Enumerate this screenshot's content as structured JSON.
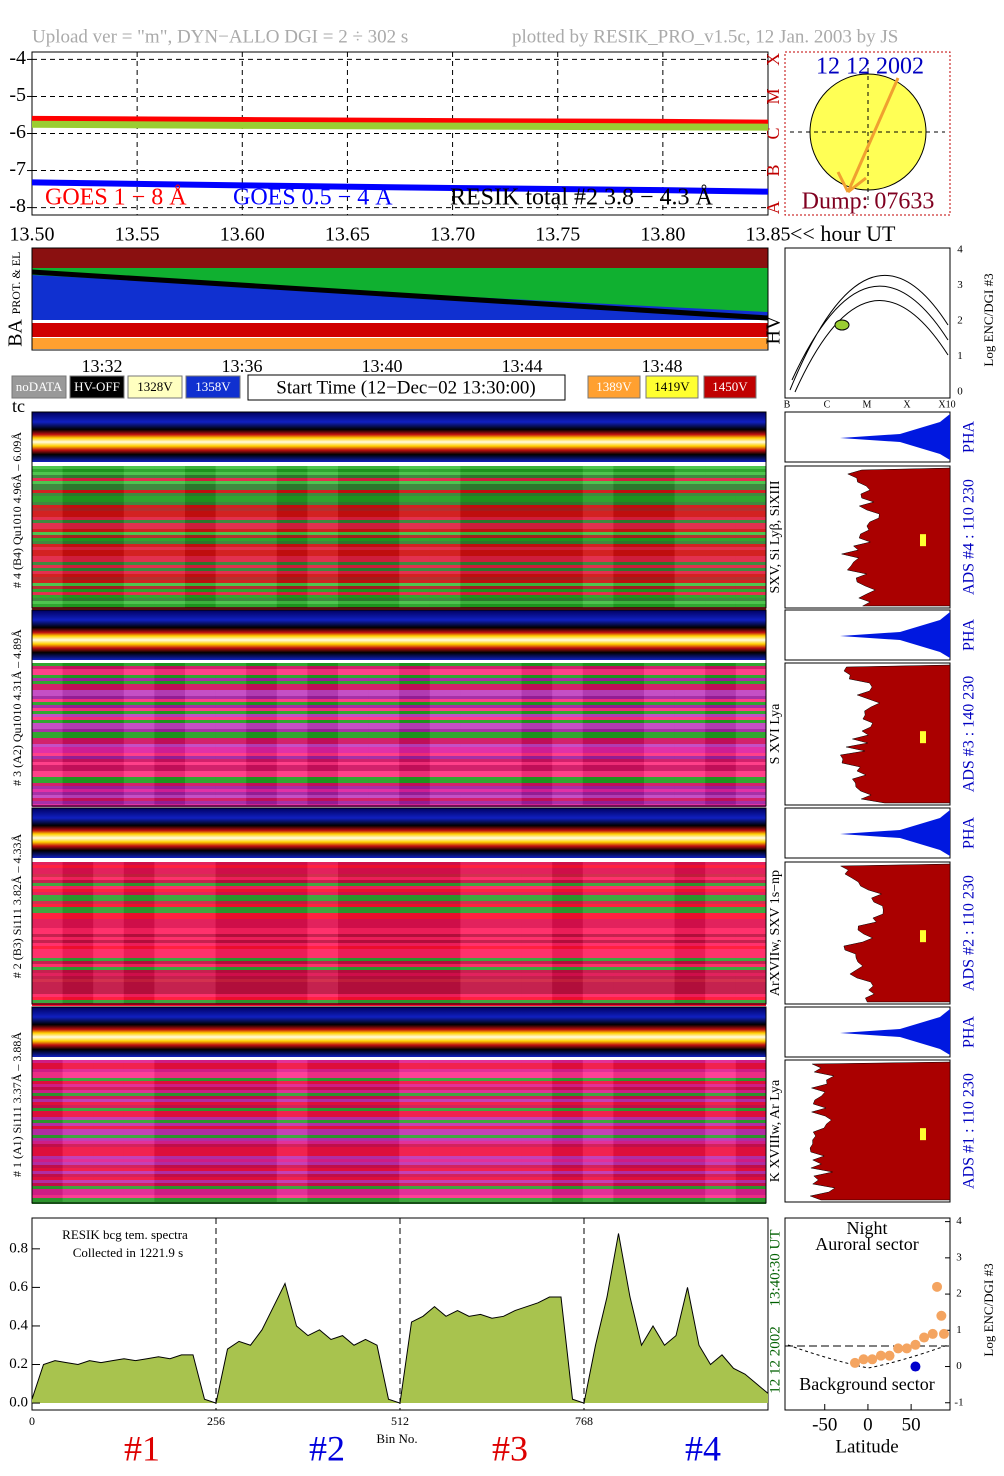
{
  "header": {
    "upload": "Upload ver = \"m\", DYN−ALLO DGI =   2 ÷ 302 s",
    "plotted": "plotted by RESIK_PRO_v1.5c, 12 Jan. 2003 by JS"
  },
  "chart_data": [
    {
      "type": "line",
      "xlabel": "<< hour UT",
      "xlim": [
        13.5,
        13.85
      ],
      "ylim": [
        -8.2,
        -3.8
      ],
      "xticks": [
        {
          "value": 13.5,
          "label": "13.50"
        },
        13.55,
        {
          "value": 13.6,
          "label": "13.60"
        },
        13.65,
        {
          "value": 13.7,
          "label": "13.70"
        },
        13.75,
        {
          "value": 13.8,
          "label": "13.80"
        },
        13.85
      ],
      "yticks": [
        -4,
        -5,
        -6,
        -7,
        -8
      ],
      "class_labels": [
        "X",
        "M",
        "C",
        "B",
        "A"
      ],
      "grid": true,
      "x": [
        13.5,
        13.6,
        13.7,
        13.8,
        13.85
      ],
      "series": [
        {
          "name": "GOES 1 − 8 Å",
          "color": "#ff0000",
          "values": [
            -5.62,
            -5.65,
            -5.68,
            -5.7,
            -5.72
          ]
        },
        {
          "name": "GOES 0.5 − 4 Å",
          "color": "#0000ff",
          "values": [
            -7.32,
            -7.4,
            -7.47,
            -7.53,
            -7.57
          ]
        },
        {
          "name": "RESIK total #2  3.8 − 4.3 Å",
          "color": "#9acd32",
          "values": [
            -5.75,
            -5.78,
            -5.8,
            -5.82,
            -5.83
          ]
        }
      ]
    },
    {
      "type": "area",
      "title": "RESIK bcg tem. spectra",
      "subtitle": "Collected in  1221.9 s",
      "xlabel": "Bin No.",
      "date": "12 12 2002",
      "time": "13:40:30 UT",
      "color": "#a8c34e",
      "xlim": [
        0,
        1024
      ],
      "ylim": [
        -0.036,
        0.96
      ],
      "xticks": [
        0,
        256,
        512,
        768
      ],
      "yticks": [
        {
          "value": 0,
          "label": "0.0"
        },
        0.2,
        0.4,
        0.6,
        0.8
      ],
      "x": [
        0,
        16,
        32,
        48,
        64,
        80,
        96,
        112,
        128,
        144,
        160,
        176,
        192,
        208,
        224,
        240,
        256,
        272,
        288,
        304,
        320,
        336,
        352,
        368,
        384,
        400,
        416,
        432,
        448,
        464,
        480,
        496,
        512,
        528,
        544,
        560,
        576,
        592,
        608,
        624,
        640,
        656,
        672,
        688,
        704,
        720,
        736,
        752,
        768,
        784,
        800,
        816,
        832,
        848,
        864,
        880,
        896,
        912,
        928,
        944,
        960,
        976,
        992,
        1008,
        1024
      ],
      "values": [
        0.02,
        0.2,
        0.22,
        0.21,
        0.2,
        0.22,
        0.21,
        0.22,
        0.23,
        0.22,
        0.23,
        0.24,
        0.23,
        0.25,
        0.25,
        0.02,
        0,
        0.28,
        0.32,
        0.3,
        0.38,
        0.5,
        0.62,
        0.4,
        0.35,
        0.38,
        0.33,
        0.35,
        0.3,
        0.33,
        0.3,
        0.02,
        0,
        0.42,
        0.45,
        0.5,
        0.45,
        0.48,
        0.45,
        0.46,
        0.44,
        0.45,
        0.48,
        0.5,
        0.52,
        0.55,
        0.55,
        0.02,
        0,
        0.3,
        0.55,
        0.88,
        0.55,
        0.3,
        0.4,
        0.3,
        0.35,
        0.6,
        0.3,
        0.2,
        0.25,
        0.18,
        0.15,
        0.1,
        0.05
      ]
    },
    {
      "type": "scatter",
      "title": "Night",
      "top_label": "Auroral sector",
      "bottom_label": "Background sector",
      "xlabel": "Latitude",
      "ylabel": "Log ENC/DGI #3",
      "xlim": [
        -96,
        95
      ],
      "ylim": [
        -1.2,
        4.1
      ],
      "xticks": [
        -50,
        0,
        50
      ],
      "yticks": [
        -1,
        0,
        1,
        2,
        3,
        4
      ],
      "series": [
        {
          "color": "#f4a460",
          "x": [
            -15,
            -5,
            5,
            15,
            25,
            35,
            45,
            55,
            65,
            75,
            80,
            85,
            88
          ],
          "values": [
            0.1,
            0.2,
            0.2,
            0.3,
            0.3,
            0.5,
            0.5,
            0.6,
            0.8,
            0.9,
            2.2,
            1.4,
            0.9
          ]
        },
        {
          "color": "#0000cc",
          "x": [
            55
          ],
          "values": [
            0
          ]
        }
      ]
    }
  ],
  "sun": {
    "date": "12 12 2002",
    "dump": "Dump: 07633"
  },
  "status": {
    "ba": "BA",
    "prot": "PROT. & EL",
    "hv": "HV",
    "times": [
      "13:32",
      "13:36",
      "13:40",
      "13:44",
      "13:48"
    ],
    "legend_left": [
      "noDATA",
      "HV-OFF",
      "1328V",
      "1358V"
    ],
    "start": "Start Time (12−Dec−02 13:30:00)",
    "legend_right": [
      "1389V",
      "1419V",
      "1450V"
    ],
    "tc": "tc"
  },
  "hv_panel": {
    "ylabel": "Log ENC/DGI #3",
    "yticks": [
      "0",
      "1",
      "2",
      "3",
      "4"
    ],
    "classes": [
      "B",
      "C",
      "M",
      "X",
      "X10"
    ]
  },
  "detectors": [
    {
      "left": "# 4 (B4) Qu1010  4.96Å – 6.09Å",
      "lines": "SXV, Si Lyβ, SiXIII",
      "ads": "ADS #4 :   110 230",
      "pha": "PHA"
    },
    {
      "left": "# 3 (A2) Qu1010  4.31Å – 4.89Å",
      "lines": "S XVI Lya",
      "ads": "ADS #3 :   140 230",
      "pha": "PHA"
    },
    {
      "left": "# 2 (B3) Si111  3.82Å – 4.33Å",
      "lines": "ArXVIIw, SXV 1s−np",
      "ads": "ADS #2 :   110 230",
      "pha": "PHA"
    },
    {
      "left": "# 1 (A1) Si111  3.37Å – 3.88Å",
      "lines": "K XVIIIw, Ar Lya",
      "ads": "ADS #1 :   110 230",
      "pha": "PHA"
    }
  ],
  "sectors": [
    {
      "label": "#1",
      "color": "#dd0000"
    },
    {
      "label": "#2",
      "color": "#0000dd"
    },
    {
      "label": "#3",
      "color": "#dd0000"
    },
    {
      "label": "#4",
      "color": "#0000dd"
    }
  ]
}
